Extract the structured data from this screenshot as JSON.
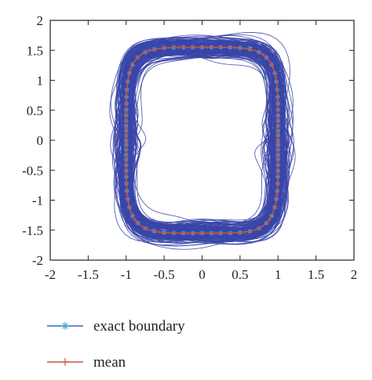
{
  "chart_data": {
    "type": "line",
    "title": "",
    "xlabel": "",
    "ylabel": "",
    "xlim": [
      -2,
      2
    ],
    "ylim": [
      -2,
      2
    ],
    "x_ticks": [
      -2,
      -1.5,
      -1,
      -0.5,
      0,
      0.5,
      1,
      1.5,
      2
    ],
    "y_ticks": [
      -2,
      -1.5,
      -1,
      -0.5,
      0,
      0.5,
      1,
      1.5,
      2
    ],
    "x_tick_labels": [
      "-2",
      "-1.5",
      "-1",
      "-0.5",
      "0",
      "0.5",
      "1",
      "1.5",
      "2"
    ],
    "y_tick_labels": [
      "-2",
      "-1.5",
      "-1",
      "-0.5",
      "0",
      "0.5",
      "1",
      "1.5",
      "2"
    ],
    "grid": false,
    "legend_position": "below",
    "sample_count": 150,
    "series": [
      {
        "name": "exact boundary",
        "color": "#3a66b8",
        "marker": "*",
        "points": [
          [
            1.0,
            0.0
          ],
          [
            0.99,
            0.46
          ],
          [
            0.91,
            0.92
          ],
          [
            0.72,
            1.25
          ],
          [
            0.44,
            1.46
          ],
          [
            0.0,
            1.55
          ],
          [
            -0.44,
            1.46
          ],
          [
            -0.72,
            1.25
          ],
          [
            -0.91,
            0.92
          ],
          [
            -0.99,
            0.46
          ],
          [
            -1.0,
            0.0
          ],
          [
            -0.99,
            -0.46
          ],
          [
            -0.91,
            -0.92
          ],
          [
            -0.72,
            -1.25
          ],
          [
            -0.44,
            -1.46
          ],
          [
            0.0,
            -1.55
          ],
          [
            0.44,
            -1.46
          ],
          [
            0.72,
            -1.25
          ],
          [
            0.91,
            -0.92
          ],
          [
            0.99,
            -0.46
          ],
          [
            1.0,
            0.0
          ]
        ]
      },
      {
        "name": "mean",
        "color": "#c8553d",
        "marker": "+",
        "points": [
          [
            1.0,
            0.0
          ],
          [
            0.99,
            0.46
          ],
          [
            0.91,
            0.92
          ],
          [
            0.72,
            1.25
          ],
          [
            0.44,
            1.46
          ],
          [
            0.0,
            1.55
          ],
          [
            -0.44,
            1.46
          ],
          [
            -0.72,
            1.25
          ],
          [
            -0.91,
            0.92
          ],
          [
            -0.99,
            0.46
          ],
          [
            -1.0,
            0.0
          ],
          [
            -0.99,
            -0.46
          ],
          [
            -0.91,
            -0.92
          ],
          [
            -0.72,
            -1.25
          ],
          [
            -0.44,
            -1.46
          ],
          [
            0.0,
            -1.55
          ],
          [
            0.44,
            -1.46
          ],
          [
            0.72,
            -1.25
          ],
          [
            0.91,
            -0.92
          ],
          [
            0.99,
            -0.46
          ],
          [
            1.0,
            0.0
          ]
        ]
      }
    ],
    "samples_color": "#3a45a8"
  }
}
